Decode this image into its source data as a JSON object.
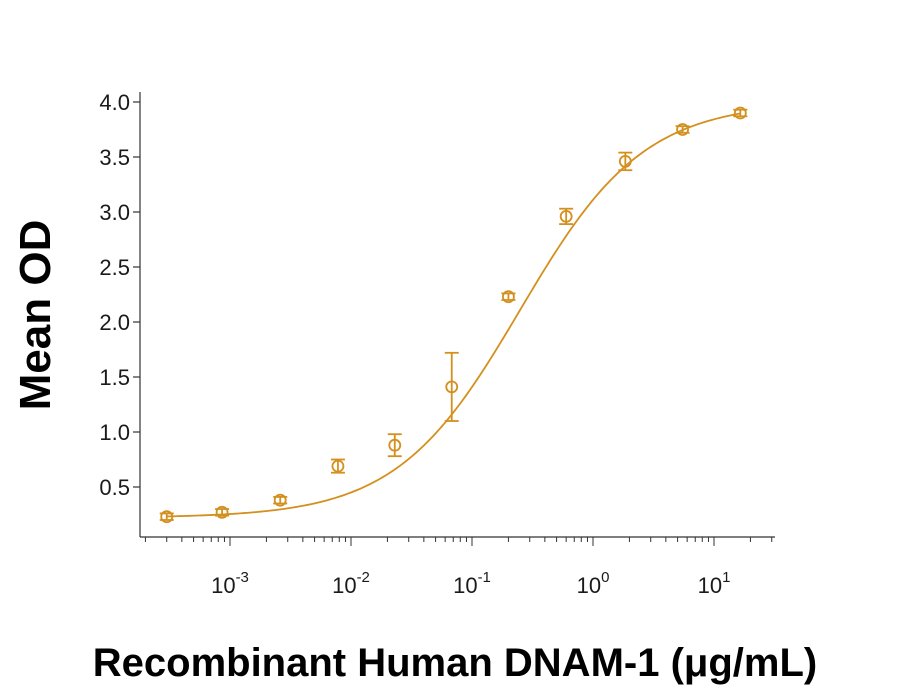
{
  "chart_data": {
    "type": "scatter",
    "xlabel": "Recombinant Human DNAM-1 (μg/mL)",
    "ylabel": "Mean OD",
    "xscale": "log",
    "xlim": [
      0.0002,
      30
    ],
    "ylim": [
      0.1,
      4.1
    ],
    "y_ticks": [
      "0.5",
      "1.0",
      "1.5",
      "2.0",
      "2.5",
      "3.0",
      "3.5",
      "4.0"
    ],
    "x_ticks": [
      {
        "base": "10",
        "exp": "-3",
        "value": 0.001
      },
      {
        "base": "10",
        "exp": "-2",
        "value": 0.01
      },
      {
        "base": "10",
        "exp": "-1",
        "value": 0.1
      },
      {
        "base": "10",
        "exp": "0",
        "value": 1
      },
      {
        "base": "10",
        "exp": "1",
        "value": 10
      }
    ],
    "grid": false,
    "color": "#D4901E",
    "series": [
      {
        "points": [
          {
            "x": 0.0003,
            "y": 0.23,
            "err": 0.03
          },
          {
            "x": 0.00086,
            "y": 0.27,
            "err": 0.03
          },
          {
            "x": 0.0026,
            "y": 0.38,
            "err": 0.03
          },
          {
            "x": 0.0078,
            "y": 0.69,
            "err": 0.06
          },
          {
            "x": 0.023,
            "y": 0.88,
            "err": 0.1
          },
          {
            "x": 0.068,
            "y": 1.41,
            "err": 0.31
          },
          {
            "x": 0.2,
            "y": 2.23,
            "err": 0.03
          },
          {
            "x": 0.6,
            "y": 2.96,
            "err": 0.07
          },
          {
            "x": 1.85,
            "y": 3.46,
            "err": 0.08
          },
          {
            "x": 5.5,
            "y": 3.75,
            "err": 0.03
          },
          {
            "x": 16.5,
            "y": 3.9,
            "err": 0.03
          }
        ],
        "fit": {
          "model": "4PL",
          "bottom": 0.22,
          "top": 4.0,
          "ec50": 0.25,
          "hill": 0.85
        }
      }
    ]
  }
}
